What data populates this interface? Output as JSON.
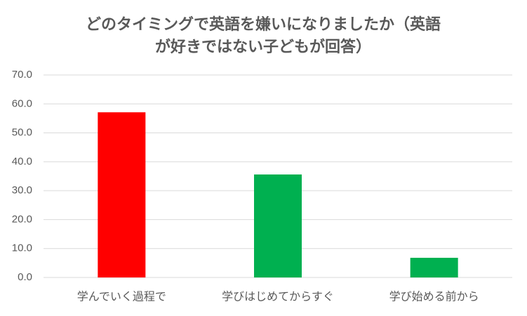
{
  "chart_data": {
    "type": "bar",
    "title": [
      "どのタイミングで英語を嫌いになりましたか（英語",
      "が好きではない子どもが回答）"
    ],
    "categories": [
      "学んでいく過程で",
      "学びはじめてからすぐ",
      "学び始める前から"
    ],
    "values": [
      57.1,
      35.6,
      6.8
    ],
    "colors": [
      "#ff0000",
      "#00b050",
      "#00b050"
    ],
    "ylim": [
      0,
      70
    ],
    "yticks": [
      {
        "value": 0,
        "label": "0.0"
      },
      {
        "value": 10,
        "label": "10.0"
      },
      {
        "value": 20,
        "label": "20.0"
      },
      {
        "value": 30,
        "label": "30.0"
      },
      {
        "value": 40,
        "label": "40.0"
      },
      {
        "value": 50,
        "label": "50.0"
      },
      {
        "value": 60,
        "label": "60.0"
      },
      {
        "value": 70,
        "label": "70.0"
      }
    ],
    "grid": true
  }
}
